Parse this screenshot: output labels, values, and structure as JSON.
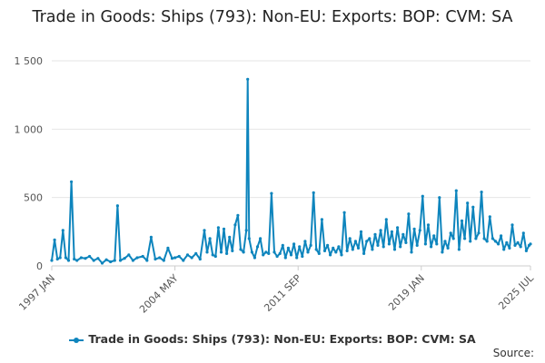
{
  "chart_data": {
    "type": "line",
    "title": "Trade in Goods: Ships (793): Non-EU: Exports: BOP: CVM: SA",
    "xlabel": "",
    "ylabel": "",
    "x_tick_labels": [
      "1997 JAN",
      "2004 MAY",
      "2011 SEP",
      "2019 JAN",
      "2025 JUL"
    ],
    "y_tick_labels": [
      "0",
      "500",
      "1 000",
      "1 500"
    ],
    "y_ticks": [
      0,
      500,
      1000,
      1500
    ],
    "ylim": [
      0,
      1500
    ],
    "x_range": [
      "1997-01",
      "2025-07"
    ],
    "grid": true,
    "legend_position": "bottom",
    "series": [
      {
        "name": "Trade in Goods: Ships (793): Non-EU: Exports: BOP: CVM: SA",
        "color": "#0e85bd",
        "points": [
          [
            "1997-01",
            40
          ],
          [
            "1997-03",
            190
          ],
          [
            "1997-05",
            50
          ],
          [
            "1997-07",
            60
          ],
          [
            "1997-09",
            260
          ],
          [
            "1997-11",
            60
          ],
          [
            "1998-01",
            40
          ],
          [
            "1998-03",
            615
          ],
          [
            "1998-05",
            50
          ],
          [
            "1998-07",
            40
          ],
          [
            "1998-10",
            60
          ],
          [
            "1999-01",
            55
          ],
          [
            "1999-04",
            70
          ],
          [
            "1999-07",
            40
          ],
          [
            "1999-10",
            55
          ],
          [
            "2000-01",
            20
          ],
          [
            "2000-04",
            45
          ],
          [
            "2000-07",
            30
          ],
          [
            "2000-10",
            40
          ],
          [
            "2000-12",
            440
          ],
          [
            "2001-02",
            40
          ],
          [
            "2001-05",
            55
          ],
          [
            "2001-08",
            80
          ],
          [
            "2001-11",
            40
          ],
          [
            "2002-02",
            60
          ],
          [
            "2002-06",
            70
          ],
          [
            "2002-09",
            40
          ],
          [
            "2002-12",
            210
          ],
          [
            "2003-03",
            50
          ],
          [
            "2003-06",
            60
          ],
          [
            "2003-09",
            40
          ],
          [
            "2003-12",
            130
          ],
          [
            "2004-03",
            55
          ],
          [
            "2004-05",
            60
          ],
          [
            "2004-08",
            70
          ],
          [
            "2004-11",
            40
          ],
          [
            "2005-02",
            80
          ],
          [
            "2005-05",
            60
          ],
          [
            "2005-08",
            90
          ],
          [
            "2005-11",
            50
          ],
          [
            "2006-02",
            260
          ],
          [
            "2006-04",
            100
          ],
          [
            "2006-06",
            200
          ],
          [
            "2006-08",
            80
          ],
          [
            "2006-10",
            70
          ],
          [
            "2006-12",
            280
          ],
          [
            "2007-02",
            100
          ],
          [
            "2007-04",
            270
          ],
          [
            "2007-06",
            90
          ],
          [
            "2007-08",
            210
          ],
          [
            "2007-10",
            110
          ],
          [
            "2007-12",
            300
          ],
          [
            "2008-02",
            370
          ],
          [
            "2008-04",
            120
          ],
          [
            "2008-06",
            100
          ],
          [
            "2008-08",
            260
          ],
          [
            "2008-09",
            1365
          ],
          [
            "2008-10",
            200
          ],
          [
            "2008-12",
            100
          ],
          [
            "2009-02",
            60
          ],
          [
            "2009-04",
            140
          ],
          [
            "2009-06",
            200
          ],
          [
            "2009-08",
            80
          ],
          [
            "2009-10",
            100
          ],
          [
            "2009-12",
            90
          ],
          [
            "2010-02",
            530
          ],
          [
            "2010-04",
            100
          ],
          [
            "2010-06",
            70
          ],
          [
            "2010-08",
            90
          ],
          [
            "2010-10",
            150
          ],
          [
            "2010-12",
            60
          ],
          [
            "2011-02",
            130
          ],
          [
            "2011-04",
            80
          ],
          [
            "2011-06",
            160
          ],
          [
            "2011-08",
            60
          ],
          [
            "2011-10",
            140
          ],
          [
            "2011-12",
            70
          ],
          [
            "2012-02",
            180
          ],
          [
            "2012-04",
            100
          ],
          [
            "2012-06",
            150
          ],
          [
            "2012-08",
            535
          ],
          [
            "2012-10",
            120
          ],
          [
            "2012-12",
            90
          ],
          [
            "2013-02",
            340
          ],
          [
            "2013-04",
            110
          ],
          [
            "2013-06",
            150
          ],
          [
            "2013-08",
            80
          ],
          [
            "2013-10",
            130
          ],
          [
            "2013-12",
            100
          ],
          [
            "2014-02",
            140
          ],
          [
            "2014-04",
            80
          ],
          [
            "2014-06",
            390
          ],
          [
            "2014-08",
            110
          ],
          [
            "2014-10",
            200
          ],
          [
            "2014-12",
            120
          ],
          [
            "2015-02",
            180
          ],
          [
            "2015-04",
            130
          ],
          [
            "2015-06",
            250
          ],
          [
            "2015-08",
            90
          ],
          [
            "2015-10",
            180
          ],
          [
            "2015-12",
            200
          ],
          [
            "2016-02",
            120
          ],
          [
            "2016-04",
            230
          ],
          [
            "2016-06",
            150
          ],
          [
            "2016-08",
            260
          ],
          [
            "2016-10",
            140
          ],
          [
            "2016-12",
            340
          ],
          [
            "2017-02",
            160
          ],
          [
            "2017-04",
            250
          ],
          [
            "2017-06",
            120
          ],
          [
            "2017-08",
            280
          ],
          [
            "2017-10",
            140
          ],
          [
            "2017-12",
            230
          ],
          [
            "2018-02",
            170
          ],
          [
            "2018-04",
            380
          ],
          [
            "2018-06",
            100
          ],
          [
            "2018-08",
            270
          ],
          [
            "2018-10",
            150
          ],
          [
            "2018-12",
            260
          ],
          [
            "2019-02",
            510
          ],
          [
            "2019-04",
            160
          ],
          [
            "2019-06",
            300
          ],
          [
            "2019-08",
            140
          ],
          [
            "2019-10",
            220
          ],
          [
            "2019-12",
            160
          ],
          [
            "2020-02",
            500
          ],
          [
            "2020-04",
            100
          ],
          [
            "2020-06",
            180
          ],
          [
            "2020-08",
            130
          ],
          [
            "2020-10",
            240
          ],
          [
            "2020-12",
            200
          ],
          [
            "2021-02",
            550
          ],
          [
            "2021-04",
            120
          ],
          [
            "2021-06",
            330
          ],
          [
            "2021-08",
            200
          ],
          [
            "2021-10",
            460
          ],
          [
            "2021-12",
            180
          ],
          [
            "2022-02",
            430
          ],
          [
            "2022-04",
            200
          ],
          [
            "2022-06",
            240
          ],
          [
            "2022-08",
            540
          ],
          [
            "2022-10",
            200
          ],
          [
            "2022-12",
            180
          ],
          [
            "2023-02",
            360
          ],
          [
            "2023-04",
            200
          ],
          [
            "2023-06",
            180
          ],
          [
            "2023-08",
            160
          ],
          [
            "2023-10",
            220
          ],
          [
            "2023-12",
            120
          ],
          [
            "2024-02",
            170
          ],
          [
            "2024-04",
            130
          ],
          [
            "2024-06",
            300
          ],
          [
            "2024-08",
            150
          ],
          [
            "2024-10",
            170
          ],
          [
            "2024-12",
            140
          ],
          [
            "2025-02",
            240
          ],
          [
            "2025-04",
            110
          ],
          [
            "2025-06",
            150
          ],
          [
            "2025-07",
            160
          ]
        ]
      }
    ]
  },
  "legend": {
    "label": "Trade in Goods: Ships (793): Non-EU: Exports: BOP: CVM: SA"
  },
  "source": {
    "label": "Source:"
  }
}
